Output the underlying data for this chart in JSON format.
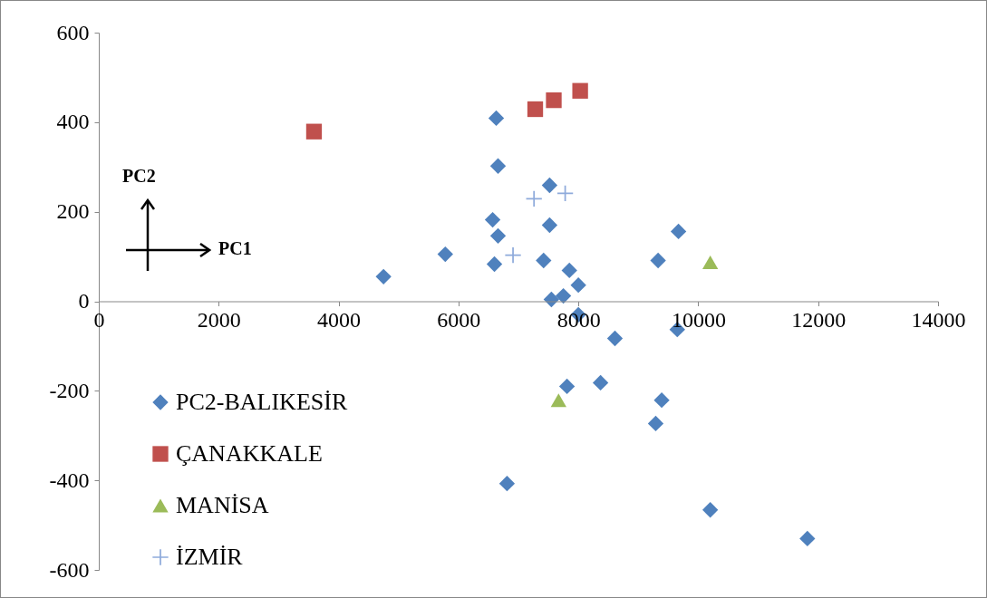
{
  "chart_data": {
    "type": "scatter",
    "xlim": [
      0,
      14000
    ],
    "xticks": [
      0,
      2000,
      4000,
      6000,
      8000,
      10000,
      12000,
      14000
    ],
    "ylim": [
      -600,
      600
    ],
    "yticks": [
      -600,
      -400,
      -200,
      0,
      200,
      400,
      600
    ],
    "grid": false,
    "legend": "bottom left",
    "annotations": [
      "PC2",
      "PC1"
    ],
    "series": [
      {
        "name": "PC2-BALIKESİR",
        "color": "#4f81bd",
        "marker": "diamond",
        "x": [
          4750,
          5780,
          6630,
          6660,
          6660,
          6570,
          6600,
          7520,
          7520,
          7420,
          7850,
          8000,
          7550,
          7750,
          8000,
          8610,
          9330,
          9670,
          9650,
          7810,
          8370,
          9390,
          9290,
          6810,
          10200,
          11820
        ],
        "values": [
          55,
          105,
          409,
          302,
          146,
          182,
          83,
          259,
          170,
          91,
          69,
          36,
          4,
          12,
          -30,
          -83,
          91,
          156,
          -63,
          -190,
          -182,
          -221,
          -273,
          -407,
          -466,
          -530
        ]
      },
      {
        "name": "ÇANAKKALE",
        "color": "#c0504d",
        "marker": "square",
        "x": [
          3590,
          7280,
          7590,
          8030
        ],
        "values": [
          379,
          429,
          449,
          470
        ]
      },
      {
        "name": "MANİSA",
        "color": "#9bbb59",
        "marker": "triangle",
        "x": [
          10200,
          7670
        ],
        "values": [
          87,
          -221
        ]
      },
      {
        "name": "İZMİR",
        "color": "#8eaadb",
        "marker": "cross",
        "x": [
          7260,
          7780,
          6910
        ],
        "values": [
          229,
          241,
          103
        ]
      }
    ]
  }
}
